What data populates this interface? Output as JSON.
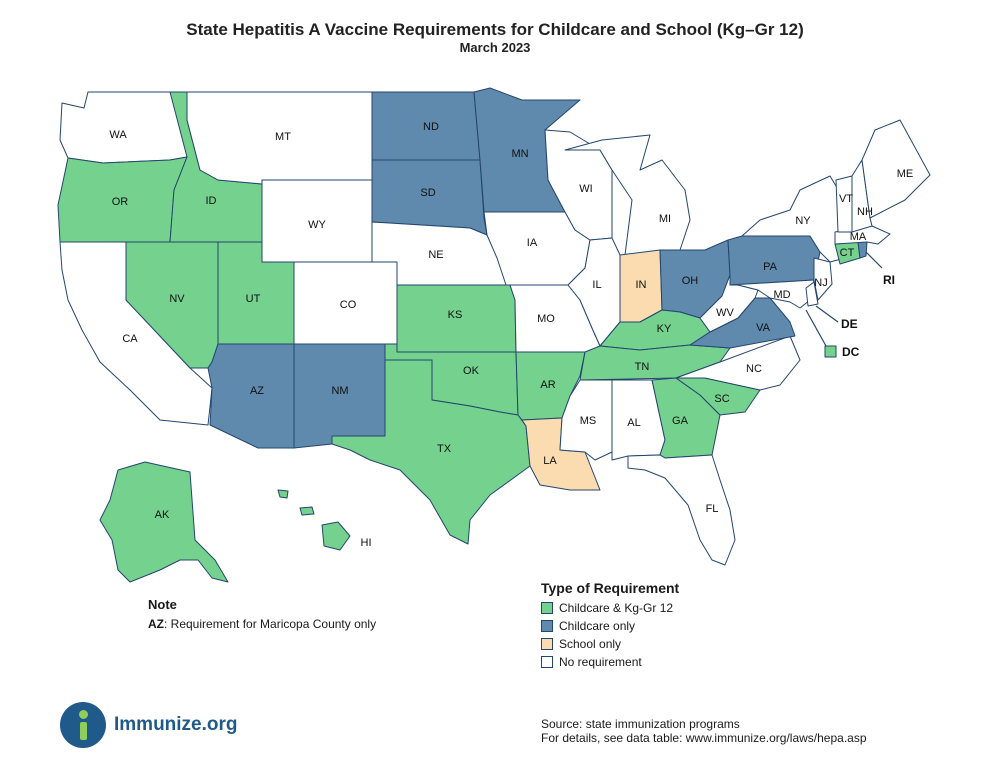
{
  "title": "State Hepatitis A Vaccine Requirements for Childcare and School (Kg–Gr 12)",
  "subtitle": "March 2023",
  "colors": {
    "both": "#74d18e",
    "childcare": "#5f89ad",
    "school": "#fbdcb0",
    "none": "#ffffff",
    "border": "#24466e"
  },
  "states": {
    "WA": {
      "label": "WA",
      "requirement": "none"
    },
    "OR": {
      "label": "OR",
      "requirement": "both"
    },
    "CA": {
      "label": "CA",
      "requirement": "none"
    },
    "ID": {
      "label": "ID",
      "requirement": "both"
    },
    "NV": {
      "label": "NV",
      "requirement": "both"
    },
    "UT": {
      "label": "UT",
      "requirement": "both"
    },
    "AZ": {
      "label": "AZ",
      "requirement": "childcare"
    },
    "MT": {
      "label": "MT",
      "requirement": "none"
    },
    "WY": {
      "label": "WY",
      "requirement": "none"
    },
    "CO": {
      "label": "CO",
      "requirement": "none"
    },
    "NM": {
      "label": "NM",
      "requirement": "childcare"
    },
    "ND": {
      "label": "ND",
      "requirement": "childcare"
    },
    "SD": {
      "label": "SD",
      "requirement": "childcare"
    },
    "NE": {
      "label": "NE",
      "requirement": "none"
    },
    "KS": {
      "label": "KS",
      "requirement": "both"
    },
    "OK": {
      "label": "OK",
      "requirement": "both"
    },
    "TX": {
      "label": "TX",
      "requirement": "both"
    },
    "MN": {
      "label": "MN",
      "requirement": "childcare"
    },
    "IA": {
      "label": "IA",
      "requirement": "none"
    },
    "MO": {
      "label": "MO",
      "requirement": "none"
    },
    "AR": {
      "label": "AR",
      "requirement": "both"
    },
    "LA": {
      "label": "LA",
      "requirement": "school"
    },
    "WI": {
      "label": "WI",
      "requirement": "none"
    },
    "IL": {
      "label": "IL",
      "requirement": "none"
    },
    "MI": {
      "label": "MI",
      "requirement": "none"
    },
    "IN": {
      "label": "IN",
      "requirement": "school"
    },
    "OH": {
      "label": "OH",
      "requirement": "childcare"
    },
    "KY": {
      "label": "KY",
      "requirement": "both"
    },
    "TN": {
      "label": "TN",
      "requirement": "both"
    },
    "MS": {
      "label": "MS",
      "requirement": "none"
    },
    "AL": {
      "label": "AL",
      "requirement": "none"
    },
    "GA": {
      "label": "GA",
      "requirement": "both"
    },
    "FL": {
      "label": "FL",
      "requirement": "none"
    },
    "SC": {
      "label": "SC",
      "requirement": "both"
    },
    "NC": {
      "label": "NC",
      "requirement": "none"
    },
    "VA": {
      "label": "VA",
      "requirement": "childcare"
    },
    "WV": {
      "label": "WV",
      "requirement": "none"
    },
    "PA": {
      "label": "PA",
      "requirement": "childcare"
    },
    "NY": {
      "label": "NY",
      "requirement": "none"
    },
    "MD": {
      "label": "MD",
      "requirement": "none"
    },
    "DE": {
      "label": "DE",
      "requirement": "none"
    },
    "NJ": {
      "label": "NJ",
      "requirement": "none"
    },
    "CT": {
      "label": "CT",
      "requirement": "both"
    },
    "RI": {
      "label": "RI",
      "requirement": "childcare"
    },
    "MA": {
      "label": "MA",
      "requirement": "none"
    },
    "VT": {
      "label": "VT",
      "requirement": "none"
    },
    "NH": {
      "label": "NH",
      "requirement": "none"
    },
    "ME": {
      "label": "ME",
      "requirement": "none"
    },
    "DC": {
      "label": "DC",
      "requirement": "both"
    },
    "AK": {
      "label": "AK",
      "requirement": "both"
    },
    "HI": {
      "label": "HI",
      "requirement": "both"
    }
  },
  "legend": {
    "title": "Type of Requirement",
    "items": [
      {
        "label": "Childcare & Kg-Gr 12",
        "requirement": "both"
      },
      {
        "label": "Childcare only",
        "requirement": "childcare"
      },
      {
        "label": "School only",
        "requirement": "school"
      },
      {
        "label": "No requirement",
        "requirement": "none"
      }
    ]
  },
  "note": {
    "title": "Note",
    "state": "AZ",
    "text": ": Requirement for Maricopa County only"
  },
  "logo_text": "Immunize.org",
  "source": {
    "line1": "Source: state immunization programs",
    "line2": "For details, see data table: www.immunize.org/laws/hepa.asp"
  }
}
